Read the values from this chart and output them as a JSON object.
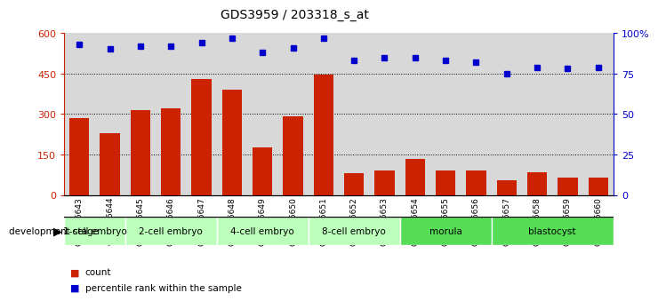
{
  "title": "GDS3959 / 203318_s_at",
  "samples": [
    "GSM456643",
    "GSM456644",
    "GSM456645",
    "GSM456646",
    "GSM456647",
    "GSM456648",
    "GSM456649",
    "GSM456650",
    "GSM456651",
    "GSM456652",
    "GSM456653",
    "GSM456654",
    "GSM456655",
    "GSM456656",
    "GSM456657",
    "GSM456658",
    "GSM456659",
    "GSM456660"
  ],
  "counts": [
    285,
    228,
    315,
    320,
    430,
    390,
    175,
    290,
    445,
    80,
    90,
    135,
    90,
    90,
    55,
    85,
    65,
    65
  ],
  "percentile_ranks": [
    93,
    90,
    92,
    92,
    94,
    97,
    88,
    91,
    97,
    83,
    85,
    85,
    83,
    82,
    75,
    79,
    78,
    79
  ],
  "stages": [
    {
      "label": "1-cell embryo",
      "start": 0,
      "end": 2,
      "color": "#bbffbb"
    },
    {
      "label": "2-cell embryo",
      "start": 2,
      "end": 5,
      "color": "#bbffbb"
    },
    {
      "label": "4-cell embryo",
      "start": 5,
      "end": 8,
      "color": "#bbffbb"
    },
    {
      "label": "8-cell embryo",
      "start": 8,
      "end": 11,
      "color": "#bbffbb"
    },
    {
      "label": "morula",
      "start": 11,
      "end": 14,
      "color": "#55dd55"
    },
    {
      "label": "blastocyst",
      "start": 14,
      "end": 18,
      "color": "#55dd55"
    }
  ],
  "bar_color": "#cc2200",
  "dot_color": "#0000cc",
  "ylim_left": [
    0,
    600
  ],
  "ylim_right": [
    0,
    100
  ],
  "yticks_left": [
    0,
    150,
    300,
    450,
    600
  ],
  "ytick_labels_left": [
    "0",
    "150",
    "300",
    "450",
    "600"
  ],
  "yticks_right": [
    0,
    25,
    50,
    75,
    100
  ],
  "ytick_labels_right": [
    "0",
    "25",
    "50",
    "75",
    "100%"
  ],
  "grid_lines": [
    150,
    300,
    450
  ],
  "background_color": "#ffffff",
  "plot_bg_color": "#d8d8d8"
}
